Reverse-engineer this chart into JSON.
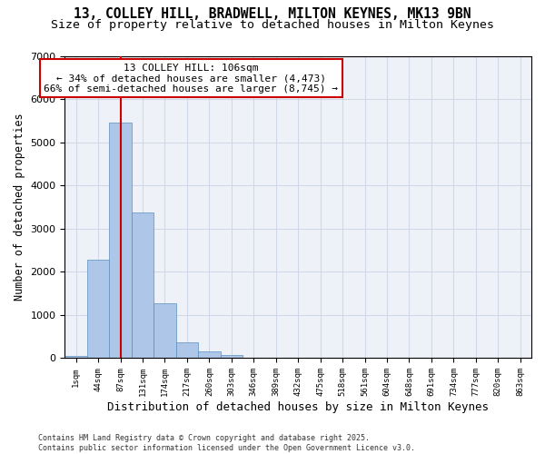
{
  "title_line1": "13, COLLEY HILL, BRADWELL, MILTON KEYNES, MK13 9BN",
  "title_line2": "Size of property relative to detached houses in Milton Keynes",
  "xlabel": "Distribution of detached houses by size in Milton Keynes",
  "ylabel": "Number of detached properties",
  "bar_values": [
    50,
    2270,
    5450,
    3380,
    1280,
    370,
    160,
    80,
    20,
    5,
    2,
    1,
    0,
    0,
    0,
    0,
    0,
    0,
    0,
    0,
    0
  ],
  "categories": [
    "1sqm",
    "44sqm",
    "87sqm",
    "131sqm",
    "174sqm",
    "217sqm",
    "260sqm",
    "303sqm",
    "346sqm",
    "389sqm",
    "432sqm",
    "475sqm",
    "518sqm",
    "561sqm",
    "604sqm",
    "648sqm",
    "691sqm",
    "734sqm",
    "777sqm",
    "820sqm",
    "863sqm"
  ],
  "bar_color": "#aec6e8",
  "bar_edge_color": "#5a8fc0",
  "vline_x": 2,
  "vline_color": "#cc0000",
  "annotation_line1": "13 COLLEY HILL: 106sqm",
  "annotation_line2": "← 34% of detached houses are smaller (4,473)",
  "annotation_line3": "66% of semi-detached houses are larger (8,745) →",
  "annotation_box_color": "#cc0000",
  "annotation_text_size": 8,
  "ylim": [
    0,
    7000
  ],
  "yticks": [
    0,
    1000,
    2000,
    3000,
    4000,
    5000,
    6000,
    7000
  ],
  "grid_color": "#d0d8e8",
  "background_color": "#eef2f8",
  "footnote_line1": "Contains HM Land Registry data © Crown copyright and database right 2025.",
  "footnote_line2": "Contains public sector information licensed under the Open Government Licence v3.0.",
  "title_fontsize": 10.5,
  "subtitle_fontsize": 9.5,
  "xlabel_fontsize": 9,
  "ylabel_fontsize": 8.5
}
